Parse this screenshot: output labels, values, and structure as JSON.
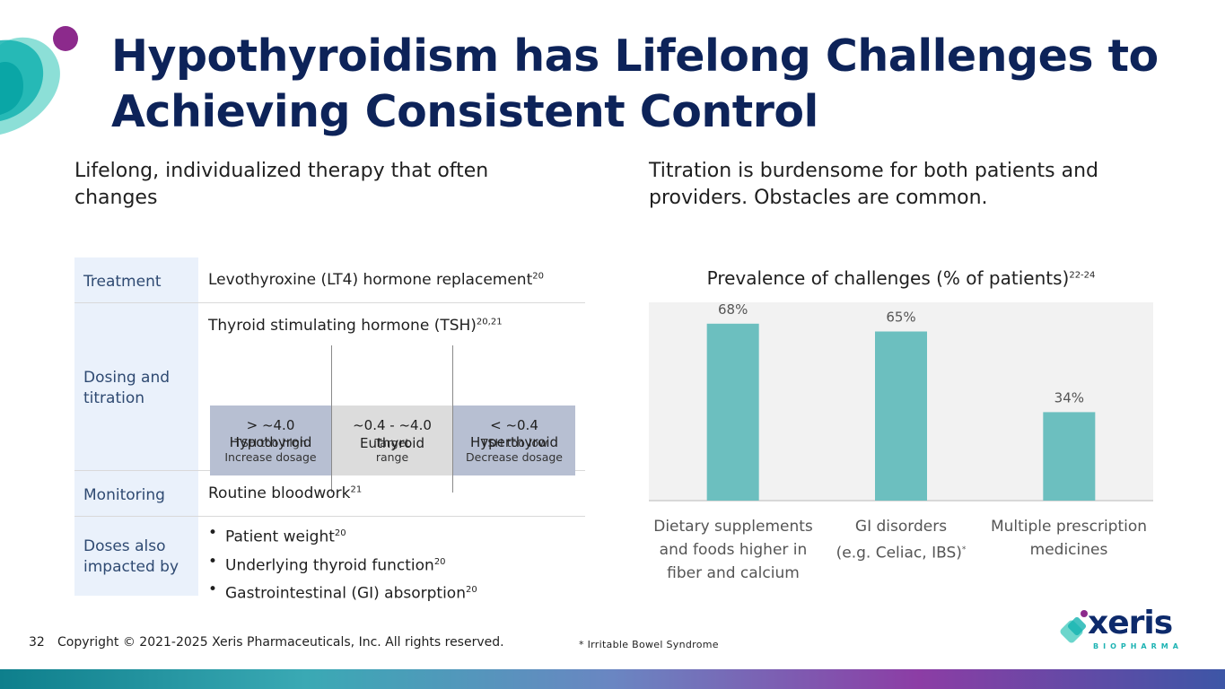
{
  "title": "Hypothyroidism has Lifelong Challenges to Achieving Consistent Control",
  "left_heading": "Lifelong, individualized therapy that often changes",
  "right_heading": "Titration is burdensome for both patients and providers. Obstacles are common.",
  "table": {
    "treatment": {
      "label": "Treatment",
      "value": "Levothyroxine (LT4) hormone replacement",
      "ref": "20"
    },
    "dosing": {
      "label": "Dosing and titration",
      "tsh_text": "Thyroid stimulating hormone (TSH)",
      "tsh_ref": "20,21",
      "segments": [
        {
          "value": "> ~4.0",
          "line1": "TSH too high",
          "line2": "Increase dosage",
          "state": "Hypothyroid"
        },
        {
          "value": "~0.4 - ~4.0",
          "line1": "Target",
          "line2": "range",
          "state": "Euthyroid"
        },
        {
          "value": "< ~0.4",
          "line1": "TSH too low",
          "line2": "Decrease dosage",
          "state": "Hyperthyroid"
        }
      ]
    },
    "monitoring": {
      "label": "Monitoring",
      "value": "Routine bloodwork",
      "ref": "21"
    },
    "doses": {
      "label": "Doses also impacted by",
      "items": [
        {
          "text": "Patient weight",
          "ref": "20"
        },
        {
          "text": "Underlying thyroid function",
          "ref": "20"
        },
        {
          "text": "Gastrointestinal (GI) absorption",
          "ref": "20"
        }
      ]
    }
  },
  "chart_title": "Prevalence of challenges (% of patients)",
  "chart_title_ref": "22-24",
  "chart_data": {
    "type": "bar",
    "title": "Prevalence of challenges (% of patients)",
    "categories": [
      "Dietary supplements and foods higher in fiber and calcium",
      "GI disorders (e.g. Celiac, IBS)",
      "Multiple prescription medicines"
    ],
    "values": [
      68,
      65,
      34
    ],
    "value_labels": [
      "68%",
      "65%",
      "34%"
    ],
    "unit": "%",
    "ylim": [
      0,
      80
    ],
    "xlabel": "",
    "ylabel": "",
    "grid": false,
    "bar_color": "#6cbfbf",
    "background_color": "#f2f2f2"
  },
  "categories_display": [
    {
      "line1": "Dietary supplements",
      "line2": "and foods higher in",
      "line3": "fiber and calcium",
      "mark": ""
    },
    {
      "line1": "GI disorders",
      "line2": "(e.g. Celiac, IBS)",
      "line3": "",
      "mark": "*"
    },
    {
      "line1": "Multiple prescription",
      "line2": "medicines",
      "line3": "",
      "mark": ""
    }
  ],
  "footer": {
    "page_number": "32",
    "copyright": "Copyright © 2021-2025 Xeris Pharmaceuticals, Inc. All rights reserved.",
    "footnote": "* Irritable Bowel Syndrome"
  },
  "logo": {
    "word": "xeris",
    "sub": "BIOPHARMA"
  },
  "colors": {
    "title": "#0d2359",
    "bar": "#6cbfbf",
    "label_bg": "#eaf1fb",
    "teal": "#1db3b3",
    "purple": "#8c2a8c"
  }
}
